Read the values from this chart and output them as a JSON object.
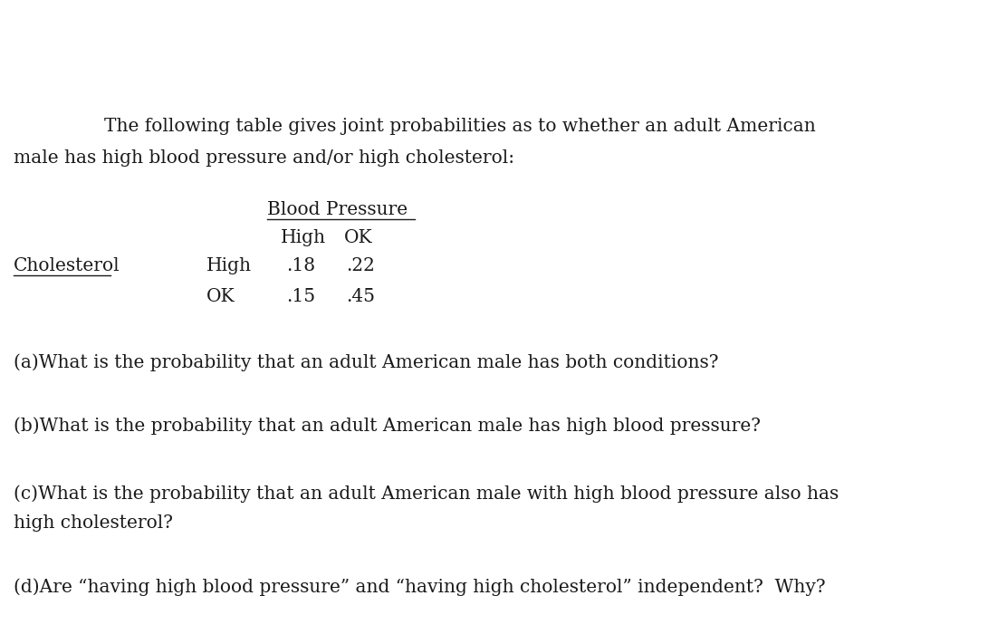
{
  "bg_color": "#ffffff",
  "text_color": "#1a1a1a",
  "font_family": "DejaVu Serif",
  "font_size": 14.5,
  "fig_width": 11.12,
  "fig_height": 7.0,
  "dpi": 100,
  "intro_line1": "The following table gives joint probabilities as to whether an adult American",
  "intro_line2": "male has high blood pressure and/or high cholesterol:",
  "bp_header": "Blood Pressure",
  "bp_col1": "High",
  "bp_col2": "OK",
  "chol_label": "Cholesterol",
  "chol_row1": "High",
  "chol_row2": "OK",
  "val_hh": ".18",
  "val_ho": ".22",
  "val_oh": ".15",
  "val_oo": ".45",
  "q_a": "(a)What is the probability that an adult American male has both conditions?",
  "q_b": "(b)What is the probability that an adult American male has high blood pressure?",
  "q_c1": "(c)What is the probability that an adult American male with high blood pressure also has",
  "q_c2": "high cholesterol?",
  "q_d": "(d)Are “having high blood pressure” and “having high cholesterol” independent?  Why?"
}
